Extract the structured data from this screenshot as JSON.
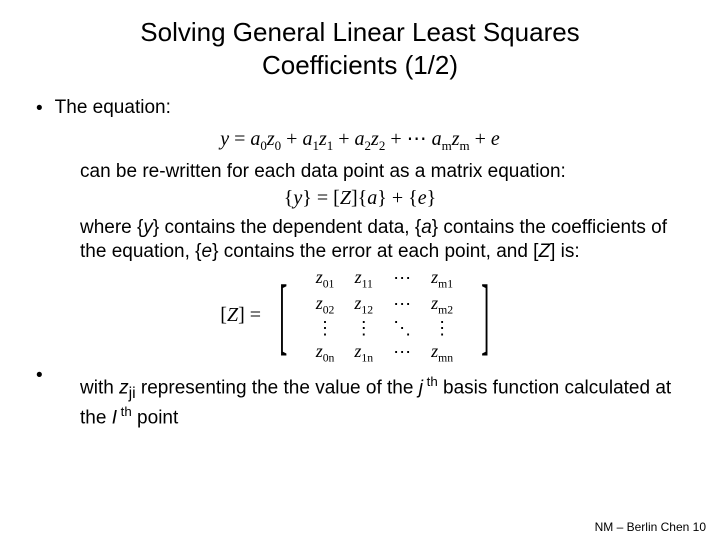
{
  "title_line1": "Solving General Linear Least Squares",
  "title_line2": "Coefficients (1/2)",
  "bullet1_label": "The equation:",
  "eqn1": {
    "terms": [
      "y = a",
      "z",
      " + a",
      "z",
      " + a",
      "z",
      " + ⋯ a",
      "z",
      " + e"
    ],
    "subs": [
      "0",
      "0",
      "1",
      "1",
      "2",
      "2",
      "m",
      "m"
    ]
  },
  "para1": "can be re-written for each data point as a matrix equation:",
  "eqn2_text": "{y} = [Z]{a} + {e}",
  "para2_pre": "where {",
  "para2_y": "y",
  "para2_mid1": "} contains the dependent data, {",
  "para2_a": "a",
  "para2_mid2": "} contains the coefficients of the equation, {",
  "para2_e": "e",
  "para2_mid3": "} contains the error at each point, and [",
  "para2_Z": "Z",
  "para2_end": "] is:",
  "matrix_label_pre": "[",
  "matrix_label_Z": "Z",
  "matrix_label_post": "] =",
  "matrix": {
    "rows": [
      [
        "z|01",
        "z|11",
        "⋯",
        "z|m1"
      ],
      [
        "z|02",
        "z|12",
        "⋯",
        "z|m2"
      ],
      [
        "⋮",
        "⋮",
        "⋱",
        "⋮"
      ],
      [
        "z|0n",
        "z|1n",
        "⋯",
        "z|mn"
      ]
    ]
  },
  "para3_pre": "with ",
  "para3_zji": "z",
  "para3_sub": "ji",
  "para3_mid1": " representing the the value of the ",
  "para3_j": "j",
  "para3_th1": " th",
  "para3_mid2": " basis function calculated at the ",
  "para3_I": "I",
  "para3_th2": " th",
  "para3_end": " point",
  "footer": "NM – Berlin Chen 10"
}
